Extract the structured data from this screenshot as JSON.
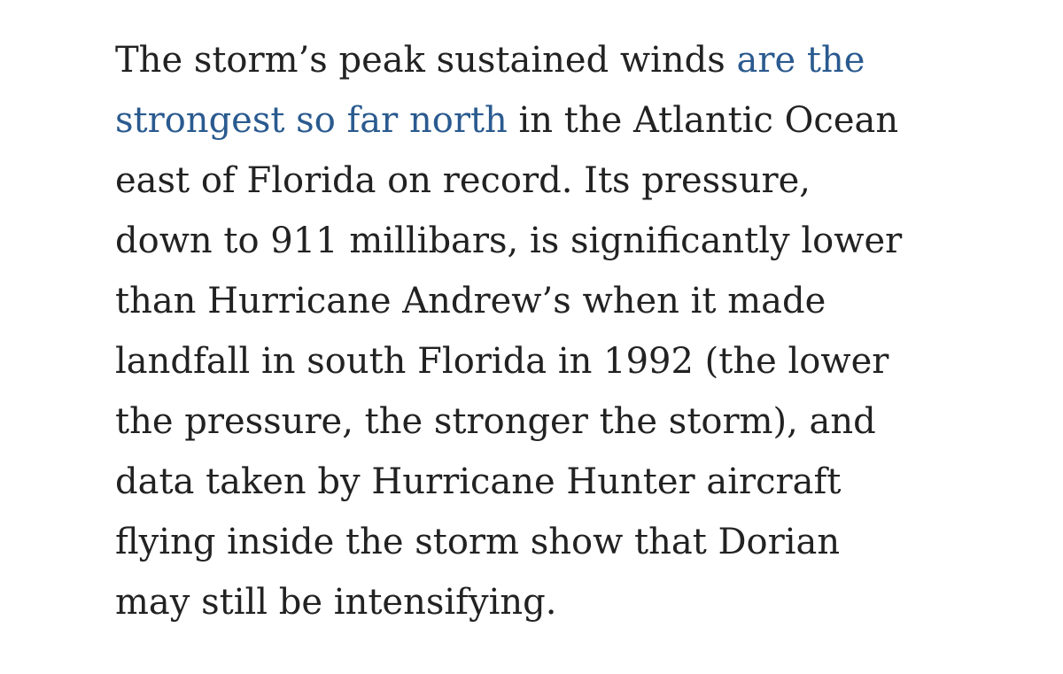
{
  "article": {
    "line1_text": "The storm’s peak sustained winds ",
    "line1_link": "are the",
    "line2_link": "strongest so far north",
    "line2_text": " in the Atlantic Ocean",
    "line3": "east of Florida on record. Its pressure,",
    "line4": "down to 911 millibars, is significantly lower",
    "line5": "than Hurricane Andrew’s when it made",
    "line6": "landfall in south Florida in 1992 (the lower",
    "line7": "the pressure, the stronger the storm), and",
    "line8": "data taken by Hurricane Hunter aircraft",
    "line9": "flying inside the storm show that Dorian",
    "line10": "may still be intensifying."
  },
  "colors": {
    "text": "#222222",
    "link": "#2a5a8f",
    "background": "#ffffff"
  }
}
